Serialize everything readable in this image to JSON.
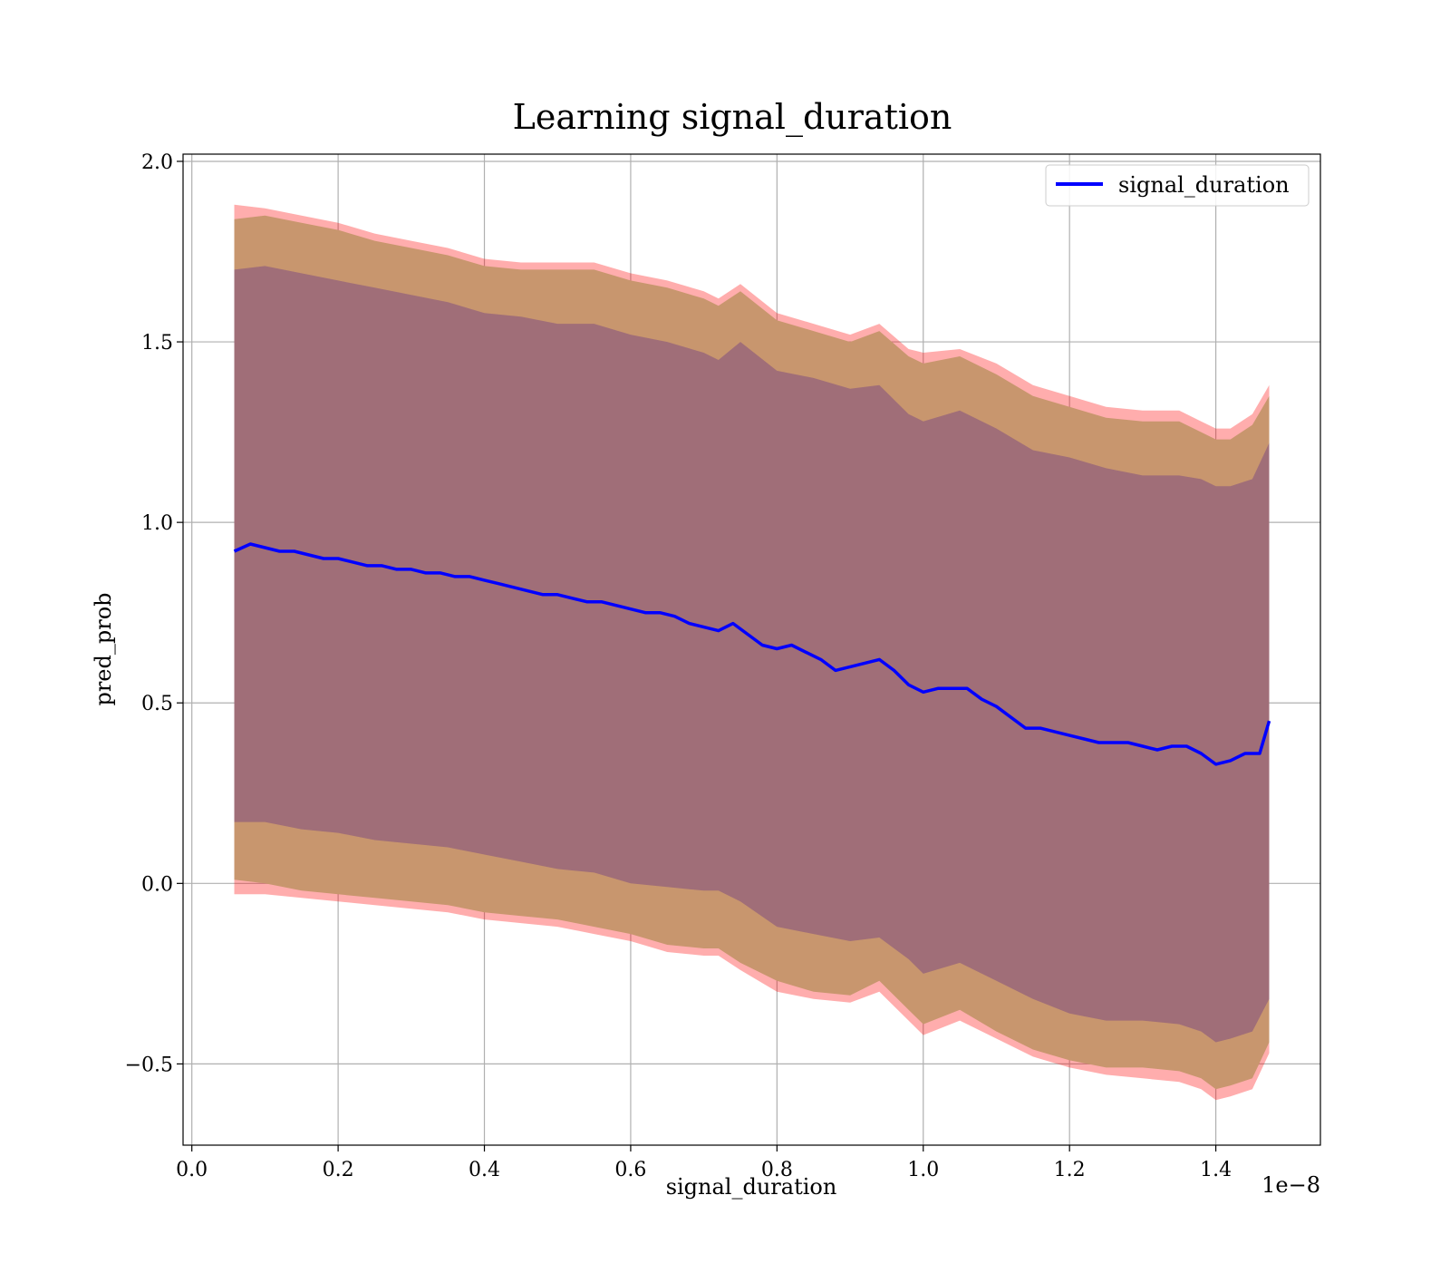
{
  "chart_data": {
    "type": "line",
    "title": "Learning signal_duration",
    "xlabel": "signal_duration",
    "ylabel": "pred_prob",
    "x_offset_label": "1e−8",
    "x_tick_values": [
      0.0,
      0.2,
      0.4,
      0.6,
      0.8,
      1.0,
      1.2,
      1.4
    ],
    "x_tick_labels": [
      "0.0",
      "0.2",
      "0.4",
      "0.6",
      "0.8",
      "1.0",
      "1.2",
      "1.4"
    ],
    "y_tick_values": [
      -0.5,
      0.0,
      0.5,
      1.0,
      1.5,
      2.0
    ],
    "y_tick_labels": [
      "−0.5",
      "0.0",
      "0.5",
      "1.0",
      "1.5",
      "2.0"
    ],
    "xlim": [
      -0.012,
      1.543
    ],
    "ylim": [
      -0.725,
      2.02
    ],
    "grid": true,
    "legend": {
      "position": "top-right",
      "entries": [
        {
          "label": "signal_duration",
          "color": "#0000ff"
        }
      ]
    },
    "series": [
      {
        "name": "signal_duration",
        "role": "line",
        "color": "#0000ff",
        "x": [
          0.058,
          0.08,
          0.1,
          0.12,
          0.14,
          0.16,
          0.18,
          0.2,
          0.22,
          0.24,
          0.26,
          0.28,
          0.3,
          0.32,
          0.34,
          0.36,
          0.38,
          0.4,
          0.42,
          0.44,
          0.46,
          0.48,
          0.5,
          0.52,
          0.54,
          0.56,
          0.58,
          0.6,
          0.62,
          0.64,
          0.66,
          0.68,
          0.7,
          0.72,
          0.74,
          0.76,
          0.78,
          0.8,
          0.82,
          0.84,
          0.86,
          0.88,
          0.9,
          0.92,
          0.94,
          0.96,
          0.98,
          1.0,
          1.02,
          1.04,
          1.06,
          1.08,
          1.1,
          1.12,
          1.14,
          1.16,
          1.18,
          1.2,
          1.22,
          1.24,
          1.26,
          1.28,
          1.3,
          1.32,
          1.34,
          1.36,
          1.38,
          1.4,
          1.42,
          1.44,
          1.46,
          1.473
        ],
        "values": [
          0.92,
          0.94,
          0.93,
          0.92,
          0.92,
          0.91,
          0.9,
          0.9,
          0.89,
          0.88,
          0.88,
          0.87,
          0.87,
          0.86,
          0.86,
          0.85,
          0.85,
          0.84,
          0.83,
          0.82,
          0.81,
          0.8,
          0.8,
          0.79,
          0.78,
          0.78,
          0.77,
          0.76,
          0.75,
          0.75,
          0.74,
          0.72,
          0.71,
          0.7,
          0.72,
          0.69,
          0.66,
          0.65,
          0.66,
          0.64,
          0.62,
          0.59,
          0.6,
          0.61,
          0.62,
          0.59,
          0.55,
          0.53,
          0.54,
          0.54,
          0.54,
          0.51,
          0.49,
          0.46,
          0.43,
          0.43,
          0.42,
          0.41,
          0.4,
          0.39,
          0.39,
          0.39,
          0.38,
          0.37,
          0.38,
          0.38,
          0.36,
          0.33,
          0.34,
          0.36,
          0.36,
          0.45
        ]
      },
      {
        "role": "band-outer",
        "color": "#ff0000",
        "x": [
          0.058,
          0.1,
          0.15,
          0.2,
          0.25,
          0.3,
          0.35,
          0.4,
          0.45,
          0.5,
          0.55,
          0.6,
          0.65,
          0.7,
          0.72,
          0.75,
          0.8,
          0.85,
          0.9,
          0.94,
          0.98,
          1.0,
          1.05,
          1.1,
          1.15,
          1.2,
          1.25,
          1.3,
          1.35,
          1.38,
          1.4,
          1.42,
          1.45,
          1.473
        ],
        "upper": [
          1.88,
          1.87,
          1.85,
          1.83,
          1.8,
          1.78,
          1.76,
          1.73,
          1.72,
          1.72,
          1.72,
          1.69,
          1.67,
          1.64,
          1.62,
          1.66,
          1.58,
          1.55,
          1.52,
          1.55,
          1.48,
          1.47,
          1.48,
          1.44,
          1.38,
          1.35,
          1.32,
          1.31,
          1.31,
          1.28,
          1.26,
          1.26,
          1.3,
          1.38
        ],
        "lower": [
          -0.03,
          -0.03,
          -0.04,
          -0.05,
          -0.06,
          -0.07,
          -0.08,
          -0.1,
          -0.11,
          -0.12,
          -0.14,
          -0.16,
          -0.19,
          -0.2,
          -0.2,
          -0.24,
          -0.3,
          -0.32,
          -0.33,
          -0.3,
          -0.38,
          -0.42,
          -0.38,
          -0.43,
          -0.48,
          -0.51,
          -0.53,
          -0.54,
          -0.55,
          -0.57,
          -0.6,
          -0.59,
          -0.57,
          -0.47
        ]
      },
      {
        "role": "band-middle",
        "color": "#c8966e",
        "x": [
          0.058,
          0.1,
          0.15,
          0.2,
          0.25,
          0.3,
          0.35,
          0.4,
          0.45,
          0.5,
          0.55,
          0.6,
          0.65,
          0.7,
          0.72,
          0.75,
          0.8,
          0.85,
          0.9,
          0.94,
          0.98,
          1.0,
          1.05,
          1.1,
          1.15,
          1.2,
          1.25,
          1.3,
          1.35,
          1.38,
          1.4,
          1.42,
          1.45,
          1.473
        ],
        "upper": [
          1.84,
          1.85,
          1.83,
          1.81,
          1.78,
          1.76,
          1.74,
          1.71,
          1.7,
          1.7,
          1.7,
          1.67,
          1.65,
          1.62,
          1.6,
          1.64,
          1.56,
          1.53,
          1.5,
          1.53,
          1.46,
          1.44,
          1.46,
          1.41,
          1.35,
          1.32,
          1.29,
          1.28,
          1.28,
          1.25,
          1.23,
          1.23,
          1.27,
          1.35
        ],
        "lower": [
          0.01,
          0.0,
          -0.02,
          -0.03,
          -0.04,
          -0.05,
          -0.06,
          -0.08,
          -0.09,
          -0.1,
          -0.12,
          -0.14,
          -0.17,
          -0.18,
          -0.18,
          -0.22,
          -0.27,
          -0.3,
          -0.31,
          -0.27,
          -0.35,
          -0.39,
          -0.35,
          -0.41,
          -0.46,
          -0.49,
          -0.51,
          -0.51,
          -0.52,
          -0.54,
          -0.57,
          -0.56,
          -0.54,
          -0.44
        ]
      },
      {
        "role": "band-inner",
        "color": "#a06e78",
        "x": [
          0.058,
          0.1,
          0.15,
          0.2,
          0.25,
          0.3,
          0.35,
          0.4,
          0.45,
          0.5,
          0.55,
          0.6,
          0.65,
          0.7,
          0.72,
          0.75,
          0.8,
          0.85,
          0.9,
          0.94,
          0.98,
          1.0,
          1.05,
          1.1,
          1.15,
          1.2,
          1.25,
          1.3,
          1.35,
          1.38,
          1.4,
          1.42,
          1.45,
          1.473
        ],
        "upper": [
          1.7,
          1.71,
          1.69,
          1.67,
          1.65,
          1.63,
          1.61,
          1.58,
          1.57,
          1.55,
          1.55,
          1.52,
          1.5,
          1.47,
          1.45,
          1.5,
          1.42,
          1.4,
          1.37,
          1.38,
          1.3,
          1.28,
          1.31,
          1.26,
          1.2,
          1.18,
          1.15,
          1.13,
          1.13,
          1.12,
          1.1,
          1.1,
          1.12,
          1.22
        ],
        "lower": [
          0.17,
          0.17,
          0.15,
          0.14,
          0.12,
          0.11,
          0.1,
          0.08,
          0.06,
          0.04,
          0.03,
          0.0,
          -0.01,
          -0.02,
          -0.02,
          -0.05,
          -0.12,
          -0.14,
          -0.16,
          -0.15,
          -0.21,
          -0.25,
          -0.22,
          -0.27,
          -0.32,
          -0.36,
          -0.38,
          -0.38,
          -0.39,
          -0.41,
          -0.44,
          -0.43,
          -0.41,
          -0.32
        ]
      }
    ]
  }
}
